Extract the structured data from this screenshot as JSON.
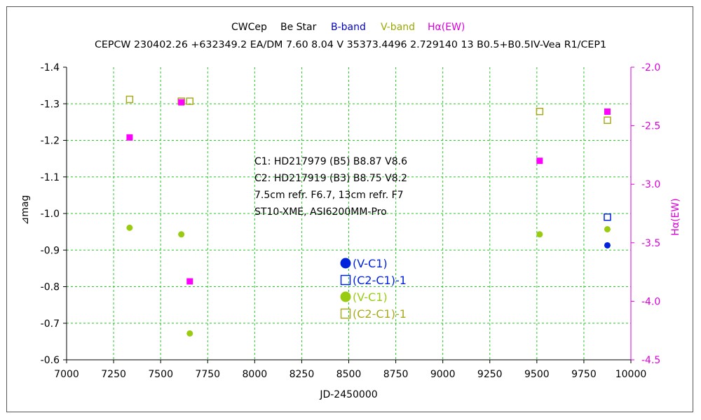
{
  "chart_data": {
    "type": "scatter",
    "title_parts": [
      {
        "text": "CWCep",
        "color": "#000000"
      },
      {
        "text": "Be Star",
        "color": "#000000"
      },
      {
        "text": "B-band",
        "color": "#0000cc"
      },
      {
        "text": "V-band",
        "color": "#99aa00"
      },
      {
        "text": "Hα(EW)",
        "color": "#dd00dd"
      }
    ],
    "subtitle": "CEPCW 230402.26 +632349.2 EA/DM 7.60 8.04 V 35373.4496 2.729140 13 B0.5+B0.5IV-Vea R1/CEP1",
    "xlabel": "JD-2450000",
    "ylabel": "⊿mag",
    "y2label": "Hα(EW)",
    "xlim": [
      7000,
      10000
    ],
    "ylim": [
      -0.6,
      -1.4
    ],
    "y2lim": [
      -4.5,
      -2.0
    ],
    "x_ticks": [
      7000,
      7250,
      7500,
      7750,
      8000,
      8250,
      8500,
      8750,
      9000,
      9250,
      9500,
      9750,
      10000
    ],
    "y_ticks": [
      -1.4,
      -1.3,
      -1.2,
      -1.1,
      -1.0,
      -0.9,
      -0.8,
      -0.7,
      -0.6
    ],
    "y2_ticks": [
      -2.0,
      -2.5,
      -3.0,
      -3.5,
      -4.0,
      -4.5
    ],
    "x_tick_labels": [
      "7000",
      "7250",
      "7500",
      "7750",
      "8000",
      "8250",
      "8500",
      "8750",
      "9000",
      "9250",
      "9500",
      "9750",
      "10000"
    ],
    "y_tick_labels": [
      "-1.4",
      "-1.3",
      "-1.2",
      "-1.1",
      "-1.0",
      "-0.9",
      "-0.8",
      "-0.7",
      "-0.6"
    ],
    "y2_tick_labels": [
      "-2.0",
      "-2.5",
      "-3.0",
      "-3.5",
      "-4.0",
      "-4.5"
    ],
    "grid": true,
    "colors": {
      "b_band": "#0022dd",
      "v_band": "#99cc11",
      "v_band_square": "#aaaa22",
      "halpha": "#ff00ff",
      "grid": "#22cc22",
      "right_axis": "#dd00dd"
    },
    "series": [
      {
        "name": "(V-C1)",
        "band": "B",
        "marker": "filled-circle",
        "axis": "left",
        "x": [
          9875
        ],
        "y": [
          -0.913
        ]
      },
      {
        "name": "(C2-C1)-1",
        "band": "B",
        "marker": "open-square",
        "axis": "left",
        "x": [
          9875
        ],
        "y": [
          -0.99
        ]
      },
      {
        "name": "(V-C1)",
        "band": "V",
        "marker": "filled-circle",
        "axis": "left",
        "x": [
          7335,
          7610,
          7655,
          9515,
          9875
        ],
        "y": [
          -0.961,
          -0.943,
          -0.672,
          -0.943,
          -0.957
        ]
      },
      {
        "name": "(C2-C1)-1",
        "band": "V",
        "marker": "open-square",
        "axis": "left",
        "x": [
          7335,
          7610,
          7655,
          9515,
          9875
        ],
        "y": [
          -1.312,
          -1.307,
          -1.307,
          -1.279,
          -1.255
        ]
      },
      {
        "name": "Hα(EW)",
        "band": "Hα",
        "marker": "filled-square",
        "axis": "right",
        "x": [
          7335,
          7610,
          7655,
          9515,
          9875
        ],
        "y": [
          -2.6,
          -2.3,
          -3.83,
          -2.8,
          -2.38
        ]
      }
    ],
    "notes": [
      "C1: HD217979 (B5)  B8.87 V8.6",
      "C2: HD217919 (B3)  B8.75 V8.2",
      "7.5cm refr. F6.7,  13cm refr. F7",
      "ST10-XME,  ASI6200MM-Pro"
    ],
    "legend": [
      {
        "label": "(V-C1)",
        "band": "B",
        "marker": "filled-circle"
      },
      {
        "label": "(C2-C1)-1",
        "band": "B",
        "marker": "open-square"
      },
      {
        "label": "(V-C1)",
        "band": "V",
        "marker": "filled-circle"
      },
      {
        "label": "(C2-C1)-1",
        "band": "V",
        "marker": "open-square"
      }
    ]
  }
}
